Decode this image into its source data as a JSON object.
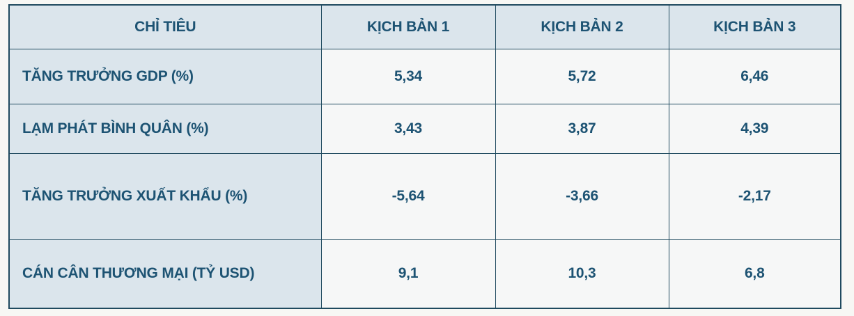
{
  "chart_data": {
    "type": "table",
    "columns": [
      "CHỈ TIÊU",
      "KỊCH BẢN 1",
      "KỊCH BẢN 2",
      "KỊCH BẢN 3"
    ],
    "rows": [
      {
        "label": "TĂNG TRƯỞNG GDP (%)",
        "values": [
          "5,34",
          "5,72",
          "6,46"
        ],
        "values_numeric": [
          5.34,
          5.72,
          6.46
        ]
      },
      {
        "label": "LẠM PHÁT BÌNH QUÂN (%)",
        "values": [
          "3,43",
          "3,87",
          "4,39"
        ],
        "values_numeric": [
          3.43,
          3.87,
          4.39
        ]
      },
      {
        "label": "TĂNG TRƯỞNG XUẤT KHẨU (%)",
        "values": [
          "-5,64",
          "-3,66",
          "-2,17"
        ],
        "values_numeric": [
          -5.64,
          -3.66,
          -2.17
        ]
      },
      {
        "label": "CÁN CÂN THƯƠNG MẠI (TỶ USD)",
        "values": [
          "9,1",
          "10,3",
          "6,8"
        ],
        "values_numeric": [
          9.1,
          10.3,
          6.8
        ]
      }
    ],
    "decimal_separator": ",",
    "colors": {
      "header_and_label_bg": "#dbe5ec",
      "value_cell_bg": "#f6f7f7",
      "border": "#1f4a5f",
      "text": "#1d5373",
      "page_bg": "#f7f7f4"
    }
  }
}
